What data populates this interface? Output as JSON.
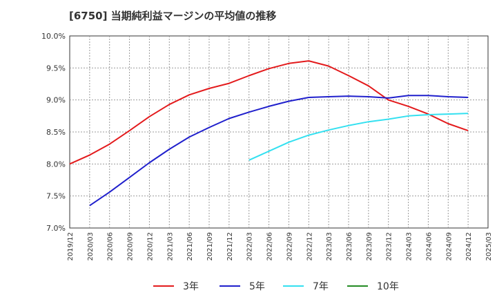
{
  "chart_data": {
    "type": "line",
    "title": "[6750]  当期純利益マージンの平均値の推移",
    "xlabel": "",
    "ylabel": "",
    "ylim": [
      7.0,
      10.0
    ],
    "y_ticks": [
      "7.0%",
      "7.5%",
      "8.0%",
      "8.5%",
      "9.0%",
      "9.5%",
      "10.0%"
    ],
    "x_ticks": [
      "2019/12",
      "2020/03",
      "2020/06",
      "2020/09",
      "2020/12",
      "2021/03",
      "2021/06",
      "2021/09",
      "2021/12",
      "2022/03",
      "2022/06",
      "2022/09",
      "2022/12",
      "2023/03",
      "2023/06",
      "2023/09",
      "2023/12",
      "2024/03",
      "2024/06",
      "2024/09",
      "2024/12",
      "2025/03"
    ],
    "grid": true,
    "legend_position": "bottom",
    "series": [
      {
        "name": "3年",
        "color": "#e31a1c",
        "points": [
          [
            "2019/12",
            8.0
          ],
          [
            "2020/03",
            8.14
          ],
          [
            "2020/06",
            8.31
          ],
          [
            "2020/09",
            8.52
          ],
          [
            "2020/12",
            8.74
          ],
          [
            "2021/03",
            8.93
          ],
          [
            "2021/06",
            9.08
          ],
          [
            "2021/09",
            9.18
          ],
          [
            "2021/12",
            9.26
          ],
          [
            "2022/03",
            9.38
          ],
          [
            "2022/06",
            9.49
          ],
          [
            "2022/09",
            9.57
          ],
          [
            "2022/12",
            9.61
          ],
          [
            "2023/03",
            9.53
          ],
          [
            "2023/06",
            9.38
          ],
          [
            "2023/09",
            9.22
          ],
          [
            "2023/12",
            9.0
          ],
          [
            "2024/03",
            8.9
          ],
          [
            "2024/06",
            8.78
          ],
          [
            "2024/09",
            8.63
          ],
          [
            "2024/12",
            8.52
          ]
        ]
      },
      {
        "name": "5年",
        "color": "#1f1fcc",
        "points": [
          [
            "2020/03",
            7.35
          ],
          [
            "2020/06",
            7.56
          ],
          [
            "2020/09",
            7.79
          ],
          [
            "2020/12",
            8.02
          ],
          [
            "2021/03",
            8.23
          ],
          [
            "2021/06",
            8.42
          ],
          [
            "2021/09",
            8.57
          ],
          [
            "2021/12",
            8.71
          ],
          [
            "2022/03",
            8.81
          ],
          [
            "2022/06",
            8.9
          ],
          [
            "2022/09",
            8.98
          ],
          [
            "2022/12",
            9.04
          ],
          [
            "2023/03",
            9.05
          ],
          [
            "2023/06",
            9.06
          ],
          [
            "2023/09",
            9.05
          ],
          [
            "2023/12",
            9.03
          ],
          [
            "2024/03",
            9.07
          ],
          [
            "2024/06",
            9.07
          ],
          [
            "2024/09",
            9.05
          ],
          [
            "2024/12",
            9.04
          ]
        ]
      },
      {
        "name": "7年",
        "color": "#33e0f0",
        "points": [
          [
            "2022/03",
            8.06
          ],
          [
            "2022/06",
            8.2
          ],
          [
            "2022/09",
            8.34
          ],
          [
            "2022/12",
            8.45
          ],
          [
            "2023/03",
            8.53
          ],
          [
            "2023/06",
            8.6
          ],
          [
            "2023/09",
            8.66
          ],
          [
            "2023/12",
            8.7
          ],
          [
            "2024/03",
            8.75
          ],
          [
            "2024/06",
            8.77
          ],
          [
            "2024/09",
            8.78
          ],
          [
            "2024/12",
            8.79
          ]
        ]
      },
      {
        "name": "10年",
        "color": "#228b22",
        "points": []
      }
    ]
  }
}
